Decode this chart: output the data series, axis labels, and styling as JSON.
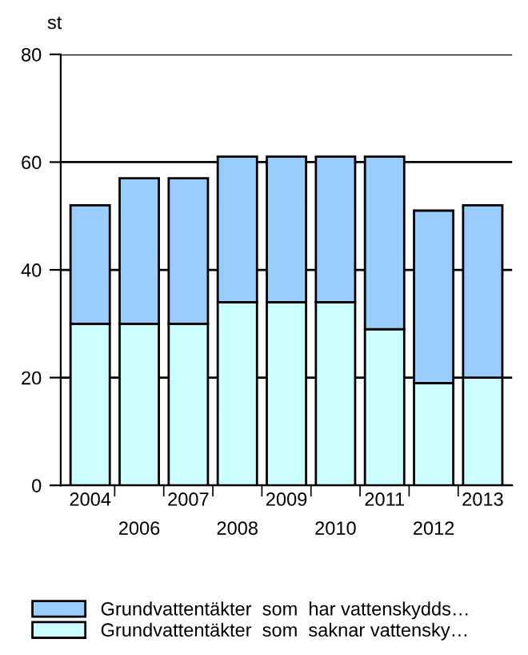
{
  "chart_data": {
    "type": "bar",
    "stacked": true,
    "ylabel": "st",
    "categories": [
      "2004",
      "2006",
      "2007",
      "2008",
      "2009",
      "2010",
      "2011",
      "2012",
      "2013"
    ],
    "series": [
      {
        "name": "Grundvattentäkter  som  saknar vattensky…",
        "color": "#ccffff",
        "values": [
          30,
          30,
          30,
          34,
          34,
          34,
          29,
          19,
          20
        ]
      },
      {
        "name": "Grundvattentäkter  som  har vattenskydds…",
        "color": "#99ccff",
        "values": [
          22,
          27,
          27,
          27,
          27,
          27,
          32,
          32,
          32
        ]
      }
    ],
    "ylim": [
      0,
      80
    ],
    "yticks": [
      0,
      20,
      40,
      60,
      80
    ],
    "grid": "y",
    "legend": "bottom"
  }
}
